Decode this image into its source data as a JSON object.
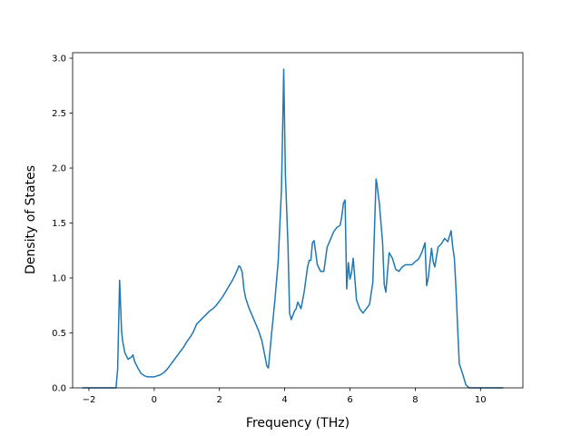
{
  "chart_data": {
    "type": "line",
    "title": "",
    "xlabel": "Frequency (THz)",
    "ylabel": "Density of States",
    "xlim": [
      -2.5,
      11.3
    ],
    "ylim": [
      0.0,
      3.05
    ],
    "grid": false,
    "x_ticks": [
      -2,
      0,
      2,
      4,
      6,
      8,
      10
    ],
    "x_tick_labels": [
      "−2",
      "0",
      "2",
      "4",
      "6",
      "8",
      "10"
    ],
    "y_ticks": [
      0.0,
      0.5,
      1.0,
      1.5,
      2.0,
      2.5,
      3.0
    ],
    "y_tick_labels": [
      "0.0",
      "0.5",
      "1.0",
      "1.5",
      "2.0",
      "2.5",
      "3.0"
    ],
    "series": [
      {
        "color": "#1f77b4",
        "x": [
          -2.2,
          -1.5,
          -1.17,
          -1.12,
          -1.06,
          -1.0,
          -0.97,
          -0.9,
          -0.8,
          -0.7,
          -0.65,
          -0.6,
          -0.55,
          -0.5,
          -0.4,
          -0.3,
          -0.2,
          -0.1,
          0.0,
          0.1,
          0.2,
          0.3,
          0.4,
          0.5,
          0.6,
          0.7,
          0.8,
          0.9,
          1.0,
          1.1,
          1.2,
          1.3,
          1.4,
          1.5,
          1.6,
          1.7,
          1.8,
          1.9,
          2.0,
          2.1,
          2.2,
          2.3,
          2.4,
          2.5,
          2.6,
          2.64,
          2.7,
          2.75,
          2.8,
          2.9,
          3.0,
          3.1,
          3.2,
          3.3,
          3.4,
          3.45,
          3.5,
          3.6,
          3.7,
          3.8,
          3.9,
          3.93,
          3.97,
          4.02,
          4.1,
          4.15,
          4.2,
          4.3,
          4.35,
          4.4,
          4.5,
          4.6,
          4.7,
          4.75,
          4.8,
          4.85,
          4.9,
          5.0,
          5.1,
          5.2,
          5.3,
          5.4,
          5.5,
          5.6,
          5.7,
          5.75,
          5.8,
          5.85,
          5.9,
          5.95,
          6.0,
          6.05,
          6.1,
          6.2,
          6.3,
          6.4,
          6.5,
          6.6,
          6.7,
          6.8,
          6.82,
          6.9,
          7.0,
          7.05,
          7.1,
          7.2,
          7.3,
          7.4,
          7.5,
          7.6,
          7.7,
          7.8,
          7.9,
          8.0,
          8.1,
          8.2,
          8.3,
          8.35,
          8.4,
          8.5,
          8.55,
          8.6,
          8.7,
          8.8,
          8.9,
          9.0,
          9.1,
          9.15,
          9.2,
          9.25,
          9.3,
          9.35,
          9.45,
          9.55,
          9.65,
          9.7,
          10.0,
          10.3,
          10.7
        ],
        "y": [
          0.0,
          0.0,
          0.0,
          0.17,
          0.98,
          0.52,
          0.43,
          0.32,
          0.26,
          0.28,
          0.3,
          0.24,
          0.21,
          0.18,
          0.13,
          0.11,
          0.1,
          0.1,
          0.1,
          0.11,
          0.12,
          0.14,
          0.17,
          0.21,
          0.25,
          0.29,
          0.33,
          0.37,
          0.42,
          0.46,
          0.51,
          0.58,
          0.61,
          0.64,
          0.67,
          0.7,
          0.72,
          0.75,
          0.79,
          0.83,
          0.88,
          0.93,
          0.98,
          1.04,
          1.11,
          1.1,
          1.05,
          0.9,
          0.82,
          0.73,
          0.66,
          0.59,
          0.52,
          0.43,
          0.28,
          0.2,
          0.18,
          0.5,
          0.8,
          1.15,
          1.8,
          2.25,
          2.9,
          1.95,
          1.3,
          0.68,
          0.62,
          0.7,
          0.72,
          0.78,
          0.72,
          0.88,
          1.1,
          1.16,
          1.16,
          1.32,
          1.34,
          1.12,
          1.06,
          1.06,
          1.28,
          1.35,
          1.42,
          1.46,
          1.48,
          1.56,
          1.68,
          1.71,
          0.9,
          1.14,
          0.99,
          1.05,
          1.18,
          0.8,
          0.72,
          0.68,
          0.72,
          0.76,
          0.96,
          1.9,
          1.87,
          1.68,
          1.32,
          0.94,
          0.87,
          1.23,
          1.18,
          1.08,
          1.06,
          1.1,
          1.12,
          1.12,
          1.12,
          1.15,
          1.17,
          1.23,
          1.32,
          0.93,
          1.0,
          1.27,
          1.15,
          1.1,
          1.28,
          1.31,
          1.36,
          1.33,
          1.43,
          1.28,
          1.18,
          0.9,
          0.55,
          0.22,
          0.13,
          0.03,
          0.0,
          0.0,
          0.0,
          0.0,
          0.0
        ]
      }
    ]
  }
}
